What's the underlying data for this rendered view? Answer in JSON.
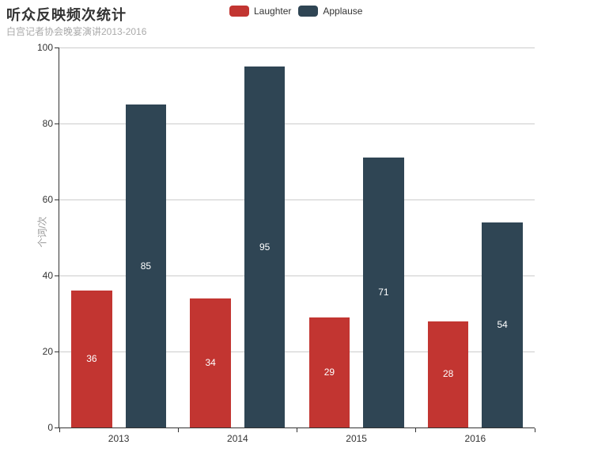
{
  "title": "听众反映频次统计",
  "subtitle": "白宫记者协会晚宴演讲2013-2016",
  "legend": {
    "items": [
      {
        "label": "Laughter",
        "color": "#c23531"
      },
      {
        "label": "Applause",
        "color": "#2f4554"
      }
    ]
  },
  "chart_data": {
    "type": "bar",
    "title": "听众反映频次统计",
    "subtitle": "白宫记者协会晚宴演讲2013-2016",
    "categories": [
      "2013",
      "2014",
      "2015",
      "2016"
    ],
    "series": [
      {
        "name": "Laughter",
        "color": "#c23531",
        "values": [
          36,
          34,
          29,
          28
        ]
      },
      {
        "name": "Applause",
        "color": "#2f4554",
        "values": [
          85,
          95,
          71,
          54
        ]
      }
    ],
    "xlabel": "",
    "ylabel": "个词/次",
    "ylim": [
      0,
      100
    ],
    "yticks": [
      0,
      20,
      40,
      60,
      80,
      100
    ],
    "grid": true,
    "legend_position": "top",
    "bar_label_position": "inside-center",
    "bar_label_color": "#ffffff"
  },
  "colors": {
    "background": "#ffffff",
    "title_text": "#333333",
    "subtitle_text": "#aaaaaa",
    "axis_line": "#333333",
    "axis_label": "#333333",
    "gridline": "#cccccc",
    "y_axis_title": "#999999",
    "laughter": "#c23531",
    "applause": "#2f4554"
  }
}
